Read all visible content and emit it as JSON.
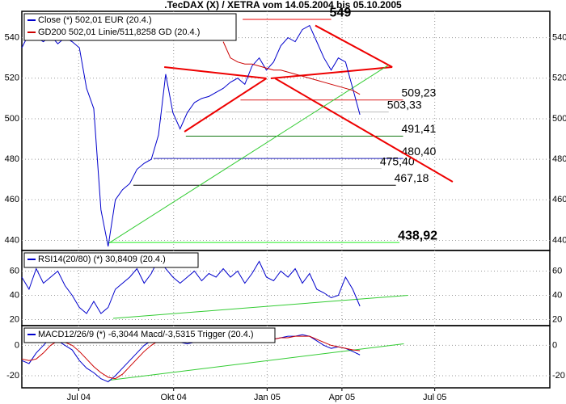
{
  "chart_data": [
    {
      "type": "line",
      "title": ".TecDAX (X) / XETRA vom 14.05.2004 bis 05.10.2005",
      "xlim": [
        0,
        73.4
      ],
      "ylim": [
        435,
        553
      ],
      "yticks": [
        440,
        460,
        480,
        500,
        520,
        540
      ],
      "grid": true,
      "series": [
        {
          "name": "Close (*) 502,01 EUR (20.4.)",
          "color": "#0000cc",
          "values": [
            535,
            542,
            540,
            538,
            541,
            537,
            540,
            538,
            535,
            515,
            505,
            455,
            437,
            460,
            465,
            468,
            475,
            478,
            480,
            492,
            522,
            503,
            495,
            503,
            508,
            510,
            511,
            513,
            515,
            518,
            520,
            517,
            526,
            530,
            524,
            528,
            536,
            540,
            538,
            544,
            546,
            538,
            530,
            524,
            530,
            528,
            515,
            502
          ]
        },
        {
          "name": "GD200 502,01 Linie/511,8258 GD (20.4.)",
          "color": "#cc0000",
          "values": [
            null,
            null,
            null,
            null,
            null,
            null,
            null,
            null,
            null,
            null,
            null,
            null,
            null,
            null,
            null,
            null,
            null,
            null,
            null,
            null,
            null,
            null,
            null,
            null,
            null,
            null,
            null,
            null,
            538,
            530,
            528,
            527,
            527,
            526,
            525,
            524,
            524,
            523,
            522,
            521,
            520,
            519,
            518,
            517,
            516,
            515,
            514,
            512
          ]
        }
      ],
      "levels": [
        {
          "value": 549,
          "label": "549",
          "color": "#ee0000",
          "from": 30.7,
          "to": 43,
          "emphasis": true
        },
        {
          "value": 509.23,
          "label": "509,23",
          "color": "#dd2222",
          "from": 30.4,
          "to": 53,
          "emphasis": false
        },
        {
          "value": 503.33,
          "label": "503,33",
          "color": "#bbbbbb",
          "from": 20,
          "to": 51,
          "emphasis": false
        },
        {
          "value": 491.41,
          "label": "491,41",
          "color": "#117711",
          "from": 22.8,
          "to": 53,
          "emphasis": false
        },
        {
          "value": 480.4,
          "label": "480,40",
          "color": "#2222bb",
          "from": 18.3,
          "to": 53,
          "emphasis": false
        },
        {
          "value": 475.4,
          "label": "475,40",
          "color": "#cccccc",
          "from": 16.6,
          "to": 50,
          "emphasis": false
        },
        {
          "value": 467.18,
          "label": "467,18",
          "color": "#000000",
          "from": 15.5,
          "to": 52,
          "emphasis": false
        },
        {
          "value": 438.92,
          "label": "438,92",
          "color": "#22ee22",
          "from": 12,
          "to": 52.5,
          "emphasis": true
        }
      ],
      "trendlines": [
        {
          "x": [
            19.8,
            34.0
          ],
          "y": [
            525.5,
            519.9
          ],
          "color": "#ee0000"
        },
        {
          "x": [
            22.6,
            34.0
          ],
          "y": [
            493.6,
            519.9
          ],
          "color": "#ee0000"
        },
        {
          "x": [
            34.6,
            51.5
          ],
          "y": [
            519.9,
            525.5
          ],
          "color": "#ee0000"
        },
        {
          "x": [
            40.8,
            51.5
          ],
          "y": [
            546.0,
            525.5
          ],
          "color": "#ee0000"
        },
        {
          "x": [
            35.2,
            59.9
          ],
          "y": [
            519.9,
            468.9
          ],
          "color": "#ee0000"
        },
        {
          "x": [
            12.1,
            50.9
          ],
          "y": [
            438.6,
            526.3
          ],
          "color": "#33cc33"
        }
      ]
    },
    {
      "type": "line",
      "xlim": [
        0,
        73.4
      ],
      "ylim": [
        15,
        77
      ],
      "yticks": [
        20,
        40,
        60
      ],
      "grid": true,
      "series": [
        {
          "name": "RSI14(20/80) (*) 30,8409 (20.4.)",
          "color": "#0000cc",
          "values": [
            55,
            45,
            62,
            50,
            55,
            60,
            48,
            40,
            30,
            25,
            35,
            25,
            30,
            45,
            50,
            55,
            62,
            50,
            58,
            70,
            62,
            55,
            50,
            55,
            60,
            52,
            58,
            55,
            62,
            55,
            60,
            50,
            58,
            68,
            55,
            52,
            60,
            55,
            62,
            50,
            58,
            45,
            42,
            38,
            40,
            55,
            45,
            31
          ]
        }
      ],
      "trendlines": [
        {
          "x": [
            12.7,
            53.7
          ],
          "y": [
            21,
            40
          ],
          "color": "#33cc33"
        }
      ]
    },
    {
      "type": "line",
      "xlim": [
        0,
        73.4
      ],
      "ylim": [
        -28,
        13
      ],
      "yticks": [
        -20,
        0
      ],
      "grid": true,
      "xticks": [
        {
          "value": 7.9,
          "label": "Jul 04"
        },
        {
          "value": 21.1,
          "label": "Okt 04"
        },
        {
          "value": 34.1,
          "label": "Jan 05"
        },
        {
          "value": 44.5,
          "label": "Apr 05"
        },
        {
          "value": 57.4,
          "label": "Jul 05"
        }
      ],
      "series": [
        {
          "name": "MACD12/26/9 (*) -6,3044 Macd/-3,5315 Trigger (20.4.)",
          "color": "#0000cc",
          "values": [
            -10,
            -12,
            -5,
            0,
            5,
            3,
            0,
            -3,
            -10,
            -15,
            -18,
            -22,
            -24,
            -20,
            -15,
            -10,
            -5,
            0,
            3,
            6,
            8,
            5,
            2,
            1,
            2,
            3,
            2,
            2,
            3,
            5,
            5,
            4,
            5,
            6,
            4,
            4,
            5,
            6,
            6,
            7,
            6,
            3,
            0,
            -2,
            -1,
            -2,
            -4,
            -6.3
          ]
        },
        {
          "color": "#cc0000",
          "values": [
            -9,
            -10,
            -9,
            -5,
            0,
            3,
            2,
            0,
            -4,
            -9,
            -14,
            -18,
            -21,
            -22,
            -19,
            -14,
            -9,
            -4,
            0,
            3,
            6,
            6,
            4,
            2,
            2,
            2,
            2,
            2,
            3,
            4,
            5,
            4,
            5,
            5,
            5,
            4,
            5,
            5,
            6,
            6,
            6,
            4,
            2,
            0,
            -1,
            -2,
            -3,
            -3.5
          ]
        }
      ],
      "trendlines": [
        {
          "x": [
            12.1,
            53.1
          ],
          "y": [
            -23,
            1
          ],
          "color": "#33cc33"
        }
      ]
    }
  ]
}
